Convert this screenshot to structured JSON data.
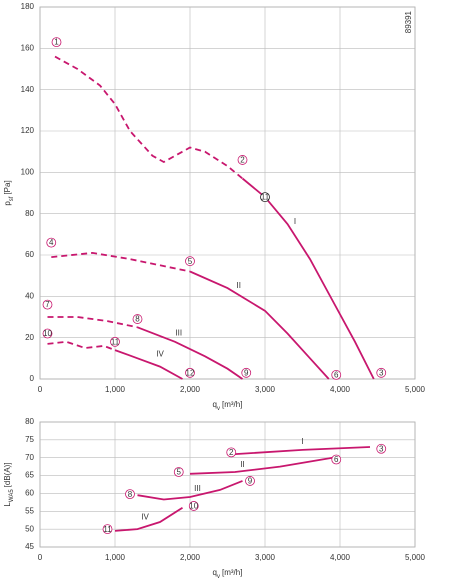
{
  "chart_data": [
    {
      "type": "line",
      "grid": true,
      "color": "#c8176e",
      "code": "89391",
      "x_label": {
        "symbol": "q",
        "sub": "v",
        "unit": "[m³/h]"
      },
      "y_label": {
        "symbol": "p",
        "sub": "sf",
        "unit": "[Pa]"
      },
      "xlim": [
        0,
        5000
      ],
      "ylim": [
        0,
        180
      ],
      "xticks": [
        0,
        {
          "value": 1000,
          "label": "1,000"
        },
        {
          "value": 2000,
          "label": "2,000"
        },
        {
          "value": 3000,
          "label": "3,000"
        },
        {
          "value": 4000,
          "label": "4,000"
        },
        {
          "value": 5000,
          "label": "5,000"
        }
      ],
      "yticks": [
        0,
        20,
        40,
        60,
        80,
        100,
        120,
        140,
        160,
        180
      ],
      "series": [
        {
          "style": "dashed",
          "x": [
            200,
            500,
            800,
            1000,
            1200,
            1500,
            1650,
            2000,
            2200,
            2500,
            2700
          ],
          "values": [
            156,
            150,
            142,
            133,
            120,
            108,
            105,
            112,
            110,
            103,
            97
          ]
        },
        {
          "name": "I",
          "style": "solid",
          "x": [
            2700,
            3000,
            3300,
            3600,
            3900,
            4200,
            4450
          ],
          "values": [
            97,
            88,
            75,
            58,
            38,
            18,
            0
          ]
        },
        {
          "style": "dashed",
          "x": [
            150,
            700,
            1200,
            1600,
            2000
          ],
          "values": [
            59,
            61,
            58,
            55,
            52
          ]
        },
        {
          "name": "II",
          "style": "solid",
          "x": [
            2000,
            2500,
            3000,
            3300,
            3600,
            3850
          ],
          "values": [
            52,
            44,
            33,
            22,
            10,
            0
          ]
        },
        {
          "style": "dashed",
          "x": [
            100,
            500,
            900,
            1300
          ],
          "values": [
            30,
            30,
            28,
            25
          ]
        },
        {
          "name": "III",
          "style": "solid",
          "x": [
            1300,
            1800,
            2200,
            2500,
            2700
          ],
          "values": [
            25,
            18,
            11,
            5,
            0
          ]
        },
        {
          "style": "dashed",
          "x": [
            100,
            350,
            600,
            850,
            1000
          ],
          "values": [
            17,
            18,
            15,
            16,
            14
          ]
        },
        {
          "name": "IV",
          "style": "solid",
          "x": [
            1000,
            1300,
            1600,
            1900
          ],
          "values": [
            14,
            10,
            6,
            0
          ]
        }
      ],
      "annotations": [
        {
          "text": "1",
          "x": 220,
          "y": 163
        },
        {
          "text": "2",
          "x": 2700,
          "y": 106
        },
        {
          "text": "3",
          "x": 4550,
          "y": 3
        },
        {
          "text": "4",
          "x": 150,
          "y": 66
        },
        {
          "text": "5",
          "x": 2000,
          "y": 57
        },
        {
          "text": "6",
          "x": 3950,
          "y": 2
        },
        {
          "text": "7",
          "x": 100,
          "y": 36
        },
        {
          "text": "8",
          "x": 1300,
          "y": 29
        },
        {
          "text": "9",
          "x": 2750,
          "y": 3
        },
        {
          "text": "10",
          "x": 100,
          "y": 22
        },
        {
          "text": "11",
          "x": 1000,
          "y": 18
        },
        {
          "text": "12",
          "x": 2000,
          "y": 3
        },
        {
          "text": "11",
          "x": 3000,
          "y": 88,
          "color": "#222"
        }
      ],
      "roman": [
        {
          "text": "I",
          "x": 3400,
          "y": 76
        },
        {
          "text": "II",
          "x": 2650,
          "y": 45
        },
        {
          "text": "III",
          "x": 1850,
          "y": 22
        },
        {
          "text": "IV",
          "x": 1600,
          "y": 12
        }
      ]
    },
    {
      "type": "line",
      "grid": true,
      "color": "#c8176e",
      "x_label": {
        "symbol": "q",
        "sub": "v",
        "unit": "[m³/h]"
      },
      "y_label": {
        "symbol": "L",
        "sub": "WA5",
        "unit": "[dB(A)]"
      },
      "xlim": [
        0,
        5000
      ],
      "ylim": [
        45,
        80
      ],
      "xticks": [
        0,
        {
          "value": 1000,
          "label": "1,000"
        },
        {
          "value": 2000,
          "label": "2,000"
        },
        {
          "value": 3000,
          "label": "3,000"
        },
        {
          "value": 4000,
          "label": "4,000"
        },
        {
          "value": 5000,
          "label": "5,000"
        }
      ],
      "yticks": [
        45,
        50,
        55,
        60,
        65,
        70,
        75,
        80
      ],
      "series": [
        {
          "name": "I",
          "style": "solid",
          "x": [
            2600,
            3500,
            4400
          ],
          "values": [
            71,
            72.2,
            73
          ]
        },
        {
          "name": "II",
          "style": "solid",
          "x": [
            2000,
            2600,
            3200,
            3900
          ],
          "values": [
            65.5,
            66,
            67.5,
            70
          ]
        },
        {
          "name": "III",
          "style": "solid",
          "x": [
            1300,
            1650,
            2000,
            2400,
            2700
          ],
          "values": [
            59.5,
            58.3,
            59,
            61,
            63.5
          ]
        },
        {
          "name": "IV",
          "style": "solid",
          "x": [
            1000,
            1300,
            1600,
            1900
          ],
          "values": [
            49.5,
            50,
            52,
            56
          ]
        }
      ],
      "annotations": [
        {
          "text": "2",
          "x": 2550,
          "y": 71.5
        },
        {
          "text": "3",
          "x": 4550,
          "y": 72.5
        },
        {
          "text": "5",
          "x": 1850,
          "y": 66
        },
        {
          "text": "6",
          "x": 3950,
          "y": 69.5
        },
        {
          "text": "8",
          "x": 1200,
          "y": 59.8
        },
        {
          "text": "9",
          "x": 2800,
          "y": 63.5
        },
        {
          "text": "11",
          "x": 900,
          "y": 50
        },
        {
          "text": "10",
          "x": 2050,
          "y": 56.5
        }
      ],
      "roman": [
        {
          "text": "I",
          "x": 3500,
          "y": 74.5
        },
        {
          "text": "II",
          "x": 2700,
          "y": 68
        },
        {
          "text": "III",
          "x": 2100,
          "y": 61.3
        },
        {
          "text": "IV",
          "x": 1400,
          "y": 53.3
        }
      ]
    }
  ]
}
